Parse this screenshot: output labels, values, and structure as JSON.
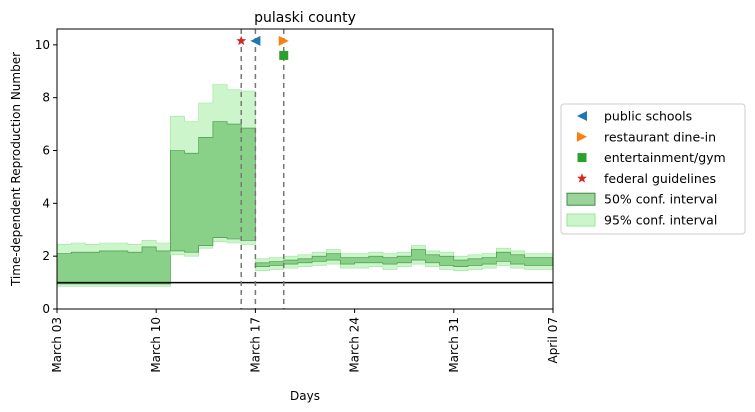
{
  "chart_data": {
    "type": "area",
    "title": "pulaski county",
    "xlabel": "Days",
    "ylabel": "Time-dependent Reproduction Number",
    "x_start": "2020-03-03",
    "x_end": "2020-04-07",
    "xlim": [
      "2020-03-03",
      "2020-04-07"
    ],
    "ylim": [
      0,
      10.6
    ],
    "x_ticks": [
      {
        "date": "2020-03-03",
        "label": "March 03"
      },
      {
        "date": "2020-03-10",
        "label": "March 10"
      },
      {
        "date": "2020-03-17",
        "label": "March 17"
      },
      {
        "date": "2020-03-24",
        "label": "March 24"
      },
      {
        "date": "2020-03-31",
        "label": "March 31"
      },
      {
        "date": "2020-04-07",
        "label": "April 07"
      }
    ],
    "y_ticks": [
      0,
      2,
      4,
      6,
      8,
      10
    ],
    "reference_line_y": 1,
    "grid": false,
    "legend_position": "outside-right",
    "segments": [
      {
        "dates": [
          "2020-03-03",
          "2020-03-04",
          "2020-03-05",
          "2020-03-06",
          "2020-03-07",
          "2020-03-08",
          "2020-03-09",
          "2020-03-10",
          "2020-03-11"
        ],
        "ci50_low": [
          0.95,
          0.95,
          0.95,
          0.95,
          0.95,
          0.95,
          0.95,
          0.95,
          0.95
        ],
        "ci50_high": [
          2.1,
          2.15,
          2.15,
          2.2,
          2.2,
          2.15,
          2.35,
          2.2,
          2.2
        ],
        "ci95_low": [
          0.85,
          0.85,
          0.85,
          0.85,
          0.85,
          0.85,
          0.85,
          0.85,
          0.85
        ],
        "ci95_high": [
          2.45,
          2.5,
          2.45,
          2.5,
          2.5,
          2.45,
          2.6,
          2.5,
          2.5
        ]
      },
      {
        "dates": [
          "2020-03-11",
          "2020-03-12",
          "2020-03-13",
          "2020-03-14",
          "2020-03-15",
          "2020-03-16",
          "2020-03-17"
        ],
        "ci50_low": [
          2.2,
          2.15,
          2.4,
          2.7,
          2.65,
          2.6,
          2.6
        ],
        "ci50_high": [
          6.0,
          5.9,
          6.5,
          7.1,
          7.0,
          6.85,
          6.85
        ],
        "ci95_low": [
          2.05,
          2.0,
          2.3,
          2.55,
          2.5,
          2.45,
          2.45
        ],
        "ci95_high": [
          7.3,
          7.1,
          7.8,
          8.5,
          8.3,
          8.25,
          8.25
        ]
      },
      {
        "dates": [
          "2020-03-17",
          "2020-03-18",
          "2020-03-19",
          "2020-03-20",
          "2020-03-21",
          "2020-03-22",
          "2020-03-23",
          "2020-03-24",
          "2020-03-25",
          "2020-03-26",
          "2020-03-27",
          "2020-03-28",
          "2020-03-29",
          "2020-03-30",
          "2020-03-31",
          "2020-04-01",
          "2020-04-02",
          "2020-04-03",
          "2020-04-04",
          "2020-04-05",
          "2020-04-06",
          "2020-04-07"
        ],
        "ci50_low": [
          1.6,
          1.65,
          1.7,
          1.75,
          1.8,
          1.85,
          1.7,
          1.75,
          1.75,
          1.7,
          1.75,
          1.85,
          1.75,
          1.65,
          1.6,
          1.65,
          1.7,
          1.8,
          1.7,
          1.65,
          1.65,
          1.65
        ],
        "ci50_high": [
          1.75,
          1.8,
          1.85,
          1.9,
          2.0,
          2.1,
          1.95,
          1.95,
          2.0,
          1.95,
          2.0,
          2.25,
          2.05,
          2.0,
          1.85,
          1.9,
          1.95,
          2.15,
          2.05,
          1.95,
          1.95,
          1.95
        ],
        "ci95_low": [
          1.45,
          1.5,
          1.55,
          1.6,
          1.65,
          1.7,
          1.55,
          1.55,
          1.6,
          1.5,
          1.6,
          1.7,
          1.6,
          1.5,
          1.45,
          1.5,
          1.55,
          1.65,
          1.55,
          1.5,
          1.5,
          1.5
        ],
        "ci95_high": [
          1.9,
          1.95,
          2.0,
          2.05,
          2.15,
          2.25,
          2.1,
          2.1,
          2.15,
          2.1,
          2.15,
          2.4,
          2.2,
          2.15,
          2.0,
          2.05,
          2.1,
          2.3,
          2.2,
          2.1,
          2.1,
          2.1
        ]
      }
    ],
    "interventions": [
      {
        "name": "public schools",
        "date": "2020-03-17",
        "y": 10.15,
        "marker": "triangle-left",
        "color": "#1f77b4"
      },
      {
        "name": "restaurant dine-in",
        "date": "2020-03-19",
        "y": 10.15,
        "marker": "triangle-right",
        "color": "#ff7f0e"
      },
      {
        "name": "entertainment/gym",
        "date": "2020-03-19",
        "y": 9.6,
        "marker": "square",
        "color": "#2ca02c"
      },
      {
        "name": "federal guidelines",
        "date": "2020-03-16",
        "y": 10.15,
        "marker": "star",
        "color": "#d62728"
      }
    ],
    "vertical_lines": [
      "2020-03-16",
      "2020-03-17",
      "2020-03-19"
    ],
    "legend": [
      {
        "label": "public schools",
        "marker": "triangle-left",
        "color": "#1f77b4"
      },
      {
        "label": "restaurant dine-in",
        "marker": "triangle-right",
        "color": "#ff7f0e"
      },
      {
        "label": "entertainment/gym",
        "marker": "square",
        "color": "#2ca02c"
      },
      {
        "label": "federal guidelines",
        "marker": "star",
        "color": "#d62728"
      },
      {
        "label": "50% conf. interval",
        "marker": "patch",
        "color": "#66bb66"
      },
      {
        "label": "95% conf. interval",
        "marker": "patch",
        "color": "#ccf5cc"
      }
    ],
    "colors": {
      "ci50_fill": "#66bb66",
      "ci50_opacity": 0.65,
      "ci50_edge": "#3d8f3d",
      "ci95_fill": "#ccf5cc",
      "ci95_edge": "#99e699",
      "reference_line": "#000000",
      "vertical_line": "#777777"
    }
  }
}
